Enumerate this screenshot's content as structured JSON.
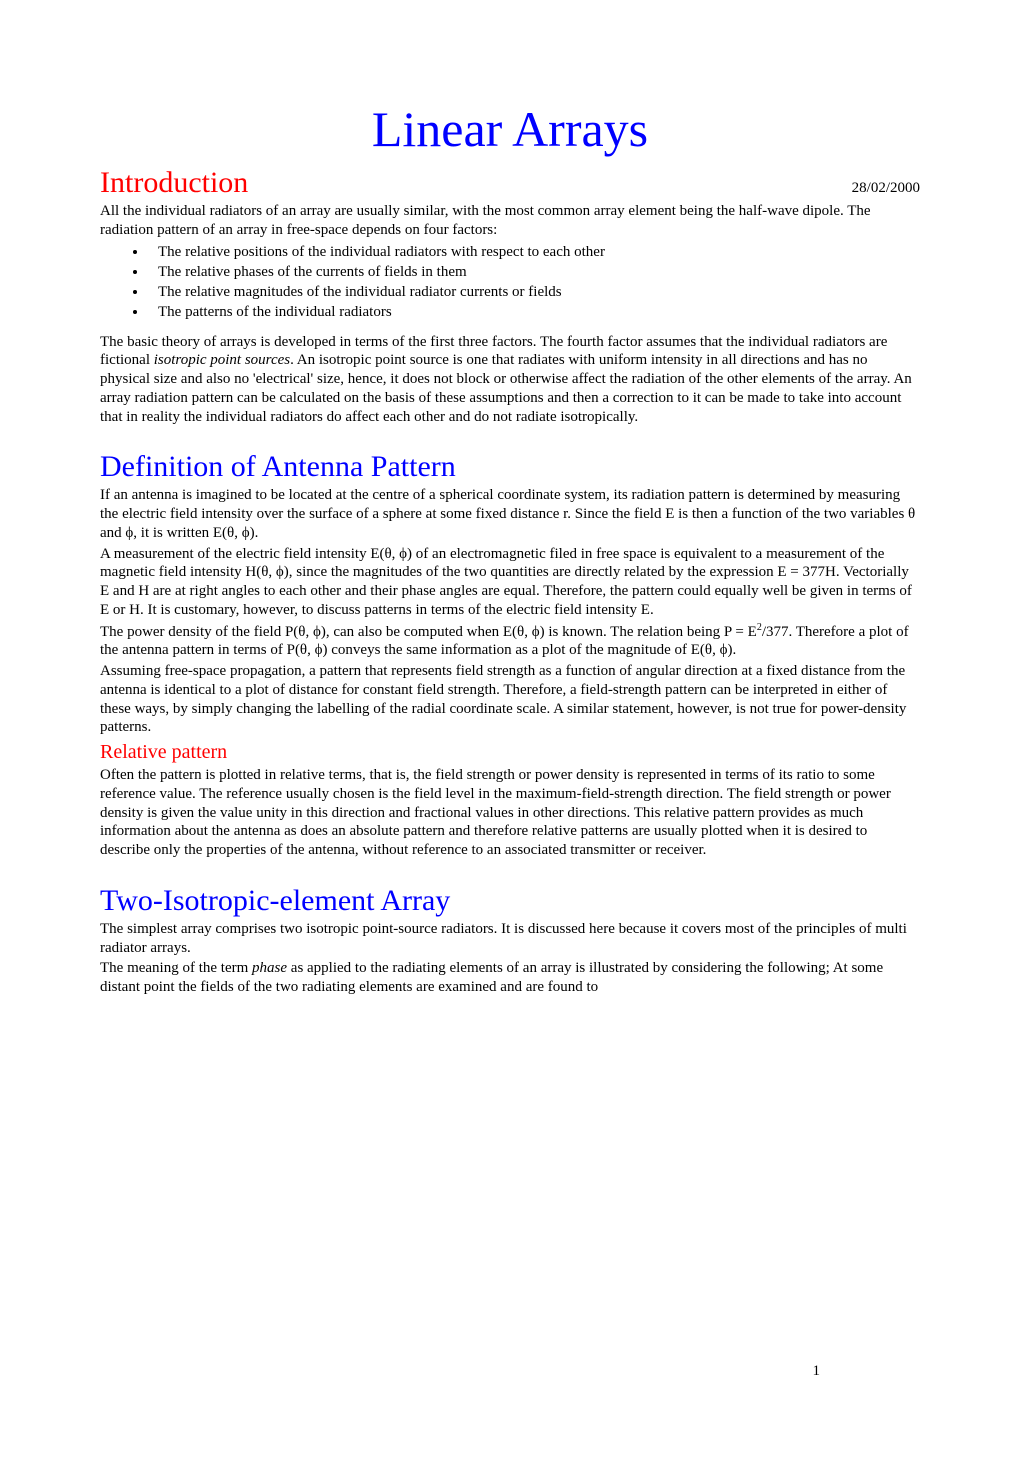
{
  "title": "Linear Arrays",
  "date": "28/02/2000",
  "page_number": "1",
  "intro": {
    "heading": "Introduction",
    "para1": "All the individual radiators of an array are usually similar, with the most common array element being the half-wave dipole. The radiation pattern of an array in free-space depends on four factors:",
    "bullets": [
      "The relative positions of the individual radiators with respect to each other",
      "The relative phases of the currents of fields in them",
      "The relative magnitudes of the individual radiator currents or fields",
      "The patterns of the individual radiators"
    ],
    "para2_a": "The basic theory of arrays is developed in terms of the first three factors. The fourth factor assumes that the individual radiators are fictional ",
    "para2_i": "isotropic point sources",
    "para2_b": ". An isotropic point source is one that radiates with uniform intensity in all directions and has no physical size and also no 'electrical' size, hence, it does not block or otherwise affect the radiation of the other elements of the array. An array radiation pattern can be calculated on the basis of these assumptions and then a correction to it can be made to take into account that in reality the individual radiators do affect each other and do not radiate isotropically."
  },
  "defn": {
    "heading": "Definition of Antenna Pattern",
    "para1": "If an antenna is imagined to be located at the centre of a spherical coordinate system, its radiation pattern is determined by measuring the electric field intensity over the surface of a sphere at some fixed distance r. Since the field E is then a function of the two variables θ and ϕ, it is written E(θ, ϕ).",
    "para2": "A measurement of the electric field intensity E(θ, ϕ) of an electromagnetic filed in free space is equivalent to a measurement of the magnetic field intensity H(θ, ϕ), since the magnitudes of the two quantities are directly related by the expression E = 377H. Vectorially E and H are at right angles to each other and their phase angles are equal. Therefore, the pattern could equally well be given in terms of E or H. It is customary, however, to discuss patterns in terms of the electric field intensity E.",
    "para3_a": "The power density of the field P(θ, ϕ), can also be computed when E(θ, ϕ) is known. The relation being P = E",
    "para3_b": "/377. Therefore a plot of the antenna pattern in terms of P(θ, ϕ) conveys the same information as a plot of the magnitude of E(θ, ϕ).",
    "para4": "Assuming free-space propagation, a pattern that represents field strength as a function of angular direction at a fixed distance from the antenna is identical to a plot of distance for constant field strength. Therefore, a field-strength pattern can be interpreted in either of these ways, by simply changing the labelling of the radial coordinate scale. A similar statement, however, is not true for power-density patterns.",
    "sub_heading": "Relative pattern",
    "para5": "Often the pattern is plotted in relative terms, that is, the field strength or power density is represented in terms of its ratio to some reference value. The reference usually chosen is the field level in the maximum-field-strength direction. The field strength or power density is given the value unity in this direction and fractional values in other directions. This relative pattern provides as much information about the antenna as does an absolute pattern and therefore relative patterns are usually plotted when it is desired to describe only the properties of the antenna, without reference to an associated transmitter or receiver."
  },
  "twoel": {
    "heading": "Two-Isotropic-element Array",
    "para1": "The simplest array comprises two isotropic point-source radiators. It is discussed here because it covers most of the principles of multi radiator arrays.",
    "para2_a": "The meaning of the term ",
    "para2_i": "phase",
    "para2_b": " as applied to the radiating elements of an array is illustrated by considering the following; At some distant point the fields of the two radiating elements are examined and are found to"
  },
  "colors": {
    "title": "#0000ff",
    "heading_red": "#ff0000",
    "heading_blue": "#0000ff",
    "text": "#000000",
    "background": "#ffffff"
  },
  "fonts": {
    "body_size_pt": 11,
    "title_size_pt": 36,
    "heading_size_pt": 22,
    "subheading_size_pt": 15,
    "family": "Times New Roman"
  }
}
